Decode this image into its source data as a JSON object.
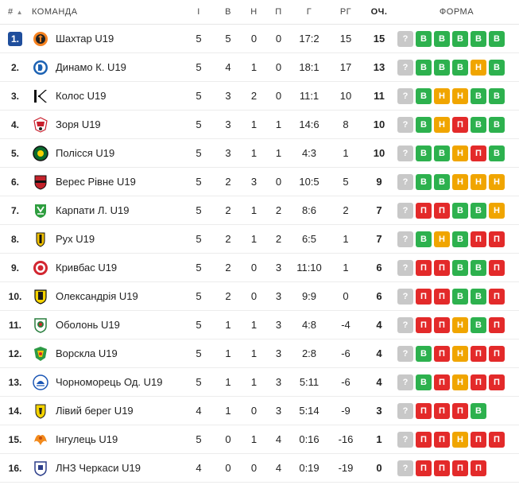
{
  "headers": {
    "pos": "#",
    "team": "КОМАНДА",
    "played": "І",
    "won": "В",
    "drawn": "Н",
    "lost": "П",
    "goals": "Г",
    "diff": "РГ",
    "points": "ОЧ.",
    "form": "ФОРМА"
  },
  "colors": {
    "win": "#2db14e",
    "draw": "#f0a500",
    "loss": "#e32a2a",
    "unknown": "#c8c8c8",
    "highlight": "#1f4e9c"
  },
  "rows": [
    {
      "pos": "1.",
      "team": "Шахтар U19",
      "p": "5",
      "w": "5",
      "d": "0",
      "l": "0",
      "g": "17:2",
      "gd": "15",
      "pts": "15",
      "logo": "shakhtar-logo-icon",
      "form": [
        {
          "t": "q",
          "l": "?"
        },
        {
          "t": "w",
          "l": "В"
        },
        {
          "t": "w",
          "l": "В"
        },
        {
          "t": "w",
          "l": "В"
        },
        {
          "t": "w",
          "l": "В"
        },
        {
          "t": "w",
          "l": "В"
        }
      ]
    },
    {
      "pos": "2.",
      "team": "Динамо К. U19",
      "p": "5",
      "w": "4",
      "d": "1",
      "l": "0",
      "g": "18:1",
      "gd": "17",
      "pts": "13",
      "logo": "dynamo-logo-icon",
      "form": [
        {
          "t": "q",
          "l": "?"
        },
        {
          "t": "w",
          "l": "В"
        },
        {
          "t": "w",
          "l": "В"
        },
        {
          "t": "w",
          "l": "В"
        },
        {
          "t": "d",
          "l": "Н"
        },
        {
          "t": "w",
          "l": "В"
        }
      ]
    },
    {
      "pos": "3.",
      "team": "Колос U19",
      "p": "5",
      "w": "3",
      "d": "2",
      "l": "0",
      "g": "11:1",
      "gd": "10",
      "pts": "11",
      "logo": "kolos-logo-icon",
      "form": [
        {
          "t": "q",
          "l": "?"
        },
        {
          "t": "w",
          "l": "В"
        },
        {
          "t": "d",
          "l": "Н"
        },
        {
          "t": "d",
          "l": "Н"
        },
        {
          "t": "w",
          "l": "В"
        },
        {
          "t": "w",
          "l": "В"
        }
      ]
    },
    {
      "pos": "4.",
      "team": "Зоря U19",
      "p": "5",
      "w": "3",
      "d": "1",
      "l": "1",
      "g": "14:6",
      "gd": "8",
      "pts": "10",
      "logo": "zorya-logo-icon",
      "form": [
        {
          "t": "q",
          "l": "?"
        },
        {
          "t": "w",
          "l": "В"
        },
        {
          "t": "d",
          "l": "Н"
        },
        {
          "t": "l",
          "l": "П"
        },
        {
          "t": "w",
          "l": "В"
        },
        {
          "t": "w",
          "l": "В"
        }
      ]
    },
    {
      "pos": "5.",
      "team": "Полісся U19",
      "p": "5",
      "w": "3",
      "d": "1",
      "l": "1",
      "g": "4:3",
      "gd": "1",
      "pts": "10",
      "logo": "polissya-logo-icon",
      "form": [
        {
          "t": "q",
          "l": "?"
        },
        {
          "t": "w",
          "l": "В"
        },
        {
          "t": "w",
          "l": "В"
        },
        {
          "t": "d",
          "l": "Н"
        },
        {
          "t": "l",
          "l": "П"
        },
        {
          "t": "w",
          "l": "В"
        }
      ]
    },
    {
      "pos": "6.",
      "team": "Верес Рівне U19",
      "p": "5",
      "w": "2",
      "d": "3",
      "l": "0",
      "g": "10:5",
      "gd": "5",
      "pts": "9",
      "logo": "veres-logo-icon",
      "form": [
        {
          "t": "q",
          "l": "?"
        },
        {
          "t": "w",
          "l": "В"
        },
        {
          "t": "w",
          "l": "В"
        },
        {
          "t": "d",
          "l": "Н"
        },
        {
          "t": "d",
          "l": "Н"
        },
        {
          "t": "d",
          "l": "Н"
        }
      ]
    },
    {
      "pos": "7.",
      "team": "Карпати Л. U19",
      "p": "5",
      "w": "2",
      "d": "1",
      "l": "2",
      "g": "8:6",
      "gd": "2",
      "pts": "7",
      "logo": "karpaty-logo-icon",
      "form": [
        {
          "t": "q",
          "l": "?"
        },
        {
          "t": "l",
          "l": "П"
        },
        {
          "t": "l",
          "l": "П"
        },
        {
          "t": "w",
          "l": "В"
        },
        {
          "t": "w",
          "l": "В"
        },
        {
          "t": "d",
          "l": "Н"
        }
      ]
    },
    {
      "pos": "8.",
      "team": "Рух U19",
      "p": "5",
      "w": "2",
      "d": "1",
      "l": "2",
      "g": "6:5",
      "gd": "1",
      "pts": "7",
      "logo": "rukh-logo-icon",
      "form": [
        {
          "t": "q",
          "l": "?"
        },
        {
          "t": "w",
          "l": "В"
        },
        {
          "t": "d",
          "l": "Н"
        },
        {
          "t": "w",
          "l": "В"
        },
        {
          "t": "l",
          "l": "П"
        },
        {
          "t": "l",
          "l": "П"
        }
      ]
    },
    {
      "pos": "9.",
      "team": "Кривбас U19",
      "p": "5",
      "w": "2",
      "d": "0",
      "l": "3",
      "g": "11:10",
      "gd": "1",
      "pts": "6",
      "logo": "kryvbas-logo-icon",
      "form": [
        {
          "t": "q",
          "l": "?"
        },
        {
          "t": "l",
          "l": "П"
        },
        {
          "t": "l",
          "l": "П"
        },
        {
          "t": "w",
          "l": "В"
        },
        {
          "t": "w",
          "l": "В"
        },
        {
          "t": "l",
          "l": "П"
        }
      ]
    },
    {
      "pos": "10.",
      "team": "Олександрія U19",
      "p": "5",
      "w": "2",
      "d": "0",
      "l": "3",
      "g": "9:9",
      "gd": "0",
      "pts": "6",
      "logo": "oleksandriya-logo-icon",
      "form": [
        {
          "t": "q",
          "l": "?"
        },
        {
          "t": "l",
          "l": "П"
        },
        {
          "t": "l",
          "l": "П"
        },
        {
          "t": "w",
          "l": "В"
        },
        {
          "t": "w",
          "l": "В"
        },
        {
          "t": "l",
          "l": "П"
        }
      ]
    },
    {
      "pos": "11.",
      "team": "Оболонь U19",
      "p": "5",
      "w": "1",
      "d": "1",
      "l": "3",
      "g": "4:8",
      "gd": "-4",
      "pts": "4",
      "logo": "obolon-logo-icon",
      "form": [
        {
          "t": "q",
          "l": "?"
        },
        {
          "t": "l",
          "l": "П"
        },
        {
          "t": "l",
          "l": "П"
        },
        {
          "t": "d",
          "l": "Н"
        },
        {
          "t": "w",
          "l": "В"
        },
        {
          "t": "l",
          "l": "П"
        }
      ]
    },
    {
      "pos": "12.",
      "team": "Ворскла U19",
      "p": "5",
      "w": "1",
      "d": "1",
      "l": "3",
      "g": "2:8",
      "gd": "-6",
      "pts": "4",
      "logo": "vorskla-logo-icon",
      "form": [
        {
          "t": "q",
          "l": "?"
        },
        {
          "t": "w",
          "l": "В"
        },
        {
          "t": "l",
          "l": "П"
        },
        {
          "t": "d",
          "l": "Н"
        },
        {
          "t": "l",
          "l": "П"
        },
        {
          "t": "l",
          "l": "П"
        }
      ]
    },
    {
      "pos": "13.",
      "team": "Чорноморець Од. U19",
      "p": "5",
      "w": "1",
      "d": "1",
      "l": "3",
      "g": "5:11",
      "gd": "-6",
      "pts": "4",
      "logo": "chornomorets-logo-icon",
      "form": [
        {
          "t": "q",
          "l": "?"
        },
        {
          "t": "w",
          "l": "В"
        },
        {
          "t": "l",
          "l": "П"
        },
        {
          "t": "d",
          "l": "Н"
        },
        {
          "t": "l",
          "l": "П"
        },
        {
          "t": "l",
          "l": "П"
        }
      ]
    },
    {
      "pos": "14.",
      "team": "Лівий берег U19",
      "p": "4",
      "w": "1",
      "d": "0",
      "l": "3",
      "g": "5:14",
      "gd": "-9",
      "pts": "3",
      "logo": "livyi-bereh-logo-icon",
      "form": [
        {
          "t": "q",
          "l": "?"
        },
        {
          "t": "l",
          "l": "П"
        },
        {
          "t": "l",
          "l": "П"
        },
        {
          "t": "l",
          "l": "П"
        },
        {
          "t": "w",
          "l": "В"
        }
      ]
    },
    {
      "pos": "15.",
      "team": "Інгулець U19",
      "p": "5",
      "w": "0",
      "d": "1",
      "l": "4",
      "g": "0:16",
      "gd": "-16",
      "pts": "1",
      "logo": "inhulets-logo-icon",
      "form": [
        {
          "t": "q",
          "l": "?"
        },
        {
          "t": "l",
          "l": "П"
        },
        {
          "t": "l",
          "l": "П"
        },
        {
          "t": "d",
          "l": "Н"
        },
        {
          "t": "l",
          "l": "П"
        },
        {
          "t": "l",
          "l": "П"
        }
      ]
    },
    {
      "pos": "16.",
      "team": "ЛНЗ Черкаси U19",
      "p": "4",
      "w": "0",
      "d": "0",
      "l": "4",
      "g": "0:19",
      "gd": "-19",
      "pts": "0",
      "logo": "lnz-logo-icon",
      "form": [
        {
          "t": "q",
          "l": "?"
        },
        {
          "t": "l",
          "l": "П"
        },
        {
          "t": "l",
          "l": "П"
        },
        {
          "t": "l",
          "l": "П"
        },
        {
          "t": "l",
          "l": "П"
        }
      ]
    }
  ]
}
